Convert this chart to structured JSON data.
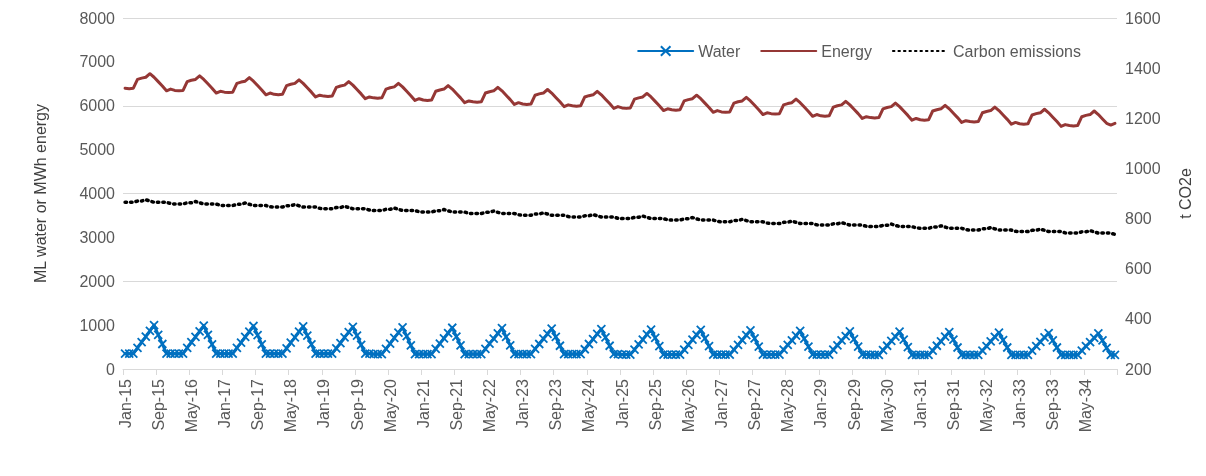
{
  "chart_data": {
    "type": "line",
    "ylabel": "ML water or MWh energy",
    "y2label": "t CO2e",
    "categories": [
      "Jan-15",
      null,
      null,
      null,
      null,
      null,
      null,
      null,
      "Sep-15",
      null,
      null,
      null,
      null,
      null,
      null,
      null,
      "May-16",
      null,
      null,
      null,
      null,
      null,
      null,
      null,
      "Jan-17",
      null,
      null,
      null,
      null,
      null,
      null,
      null,
      "Sep-17",
      null,
      null,
      null,
      null,
      null,
      null,
      null,
      "May-18",
      null,
      null,
      null,
      null,
      null,
      null,
      null,
      "Jan-19",
      null,
      null,
      null,
      null,
      null,
      null,
      null,
      "Sep-19",
      null,
      null,
      null,
      null,
      null,
      null,
      null,
      "May-20",
      null,
      null,
      null,
      null,
      null,
      null,
      null,
      "Jan-21",
      null,
      null,
      null,
      null,
      null,
      null,
      null,
      "Sep-21",
      null,
      null,
      null,
      null,
      null,
      null,
      null,
      "May-22",
      null,
      null,
      null,
      null,
      null,
      null,
      null,
      "Jan-23",
      null,
      null,
      null,
      null,
      null,
      null,
      null,
      "Sep-23",
      null,
      null,
      null,
      null,
      null,
      null,
      null,
      "May-24",
      null,
      null,
      null,
      null,
      null,
      null,
      null,
      "Jan-25",
      null,
      null,
      null,
      null,
      null,
      null,
      null,
      "Sep-25",
      null,
      null,
      null,
      null,
      null,
      null,
      null,
      "May-26",
      null,
      null,
      null,
      null,
      null,
      null,
      null,
      "Jan-27",
      null,
      null,
      null,
      null,
      null,
      null,
      null,
      "Sep-27",
      null,
      null,
      null,
      null,
      null,
      null,
      null,
      "May-28",
      null,
      null,
      null,
      null,
      null,
      null,
      null,
      "Jan-29",
      null,
      null,
      null,
      null,
      null,
      null,
      null,
      "Sep-29",
      null,
      null,
      null,
      null,
      null,
      null,
      null,
      "May-30",
      null,
      null,
      null,
      null,
      null,
      null,
      null,
      "Jan-31",
      null,
      null,
      null,
      null,
      null,
      null,
      null,
      "Sep-31",
      null,
      null,
      null,
      null,
      null,
      null,
      null,
      "May-32",
      null,
      null,
      null,
      null,
      null,
      null,
      null,
      "Jan-33",
      null,
      null,
      null,
      null,
      null,
      null,
      null,
      "Sep-33",
      null,
      null,
      null,
      null,
      null,
      null,
      null,
      "May-34",
      null,
      null,
      null,
      null,
      null,
      null,
      null
    ],
    "series": [
      {
        "name": "Water",
        "color": "#0070c0",
        "marker": "cross",
        "values": [
          350,
          350,
          350,
          480,
          610,
          740,
          870,
          1000,
          780,
          570,
          350,
          350,
          350,
          350,
          350,
          480,
          610,
          730,
          860,
          990,
          780,
          560,
          350,
          350,
          350,
          350,
          350,
          480,
          600,
          730,
          850,
          980,
          770,
          560,
          350,
          350,
          350,
          350,
          350,
          470,
          600,
          720,
          850,
          970,
          760,
          560,
          350,
          350,
          350,
          350,
          350,
          470,
          590,
          720,
          840,
          960,
          760,
          550,
          350,
          350,
          340,
          340,
          340,
          460,
          580,
          710,
          830,
          950,
          750,
          540,
          340,
          340,
          340,
          340,
          340,
          460,
          580,
          700,
          820,
          940,
          740,
          540,
          340,
          340,
          340,
          340,
          340,
          460,
          580,
          690,
          810,
          930,
          730,
          540,
          340,
          340,
          340,
          340,
          340,
          460,
          570,
          690,
          800,
          920,
          730,
          530,
          340,
          340,
          340,
          340,
          340,
          450,
          570,
          680,
          800,
          910,
          720,
          530,
          340,
          340,
          330,
          330,
          330,
          440,
          560,
          670,
          790,
          900,
          710,
          520,
          330,
          330,
          330,
          330,
          330,
          440,
          550,
          670,
          780,
          890,
          700,
          520,
          330,
          330,
          330,
          330,
          330,
          440,
          550,
          660,
          770,
          880,
          700,
          510,
          330,
          330,
          330,
          330,
          330,
          440,
          550,
          650,
          760,
          870,
          690,
          510,
          330,
          330,
          330,
          330,
          330,
          440,
          540,
          650,
          750,
          860,
          680,
          510,
          330,
          330,
          320,
          320,
          320,
          430,
          530,
          640,
          740,
          850,
          670,
          500,
          320,
          320,
          320,
          320,
          320,
          420,
          530,
          630,
          740,
          840,
          670,
          490,
          320,
          320,
          320,
          320,
          320,
          420,
          520,
          630,
          730,
          830,
          660,
          490,
          320,
          320,
          320,
          320,
          320,
          420,
          520,
          620,
          720,
          820,
          650,
          490,
          320,
          320,
          320,
          320,
          320,
          420,
          520,
          610,
          710,
          810,
          650,
          480,
          320,
          320
        ]
      },
      {
        "name": "Energy",
        "color": "#953735",
        "marker": "none",
        "values": [
          6400,
          6390,
          6400,
          6600,
          6630,
          6650,
          6730,
          6650,
          6550,
          6450,
          6340,
          6380,
          6350,
          6340,
          6350,
          6550,
          6580,
          6600,
          6680,
          6600,
          6500,
          6400,
          6290,
          6330,
          6310,
          6300,
          6310,
          6510,
          6540,
          6560,
          6640,
          6560,
          6460,
          6360,
          6250,
          6290,
          6260,
          6250,
          6260,
          6460,
          6490,
          6510,
          6590,
          6510,
          6410,
          6310,
          6200,
          6240,
          6220,
          6210,
          6220,
          6420,
          6450,
          6470,
          6550,
          6470,
          6370,
          6270,
          6160,
          6200,
          6180,
          6170,
          6180,
          6380,
          6410,
          6430,
          6510,
          6430,
          6330,
          6230,
          6120,
          6160,
          6130,
          6120,
          6130,
          6330,
          6360,
          6380,
          6460,
          6380,
          6280,
          6180,
          6070,
          6110,
          6090,
          6080,
          6090,
          6290,
          6320,
          6340,
          6420,
          6340,
          6240,
          6140,
          6030,
          6070,
          6040,
          6030,
          6040,
          6240,
          6270,
          6290,
          6370,
          6290,
          6190,
          6090,
          5980,
          6020,
          6000,
          5990,
          6000,
          6200,
          6230,
          6250,
          6330,
          6250,
          6150,
          6050,
          5940,
          5980,
          5950,
          5940,
          5950,
          6150,
          6180,
          6200,
          6280,
          6200,
          6100,
          6000,
          5890,
          5930,
          5910,
          5900,
          5910,
          6110,
          6140,
          6160,
          6240,
          6160,
          6060,
          5960,
          5850,
          5890,
          5860,
          5850,
          5860,
          6060,
          6090,
          6110,
          6190,
          6110,
          6010,
          5910,
          5800,
          5840,
          5820,
          5810,
          5820,
          6020,
          6050,
          6070,
          6150,
          6070,
          5970,
          5870,
          5760,
          5800,
          5770,
          5760,
          5770,
          5970,
          6000,
          6020,
          6100,
          6020,
          5920,
          5820,
          5710,
          5750,
          5730,
          5720,
          5730,
          5930,
          5960,
          5980,
          6060,
          5980,
          5880,
          5780,
          5670,
          5710,
          5680,
          5670,
          5680,
          5880,
          5910,
          5930,
          6010,
          5930,
          5830,
          5730,
          5620,
          5660,
          5640,
          5630,
          5640,
          5840,
          5870,
          5890,
          5970,
          5890,
          5790,
          5690,
          5580,
          5620,
          5590,
          5580,
          5590,
          5790,
          5820,
          5840,
          5920,
          5840,
          5740,
          5640,
          5530,
          5570,
          5550,
          5540,
          5550,
          5750,
          5780,
          5800,
          5880,
          5800,
          5700,
          5600,
          5560,
          5600
        ]
      },
      {
        "name": "Carbon emissions",
        "color": "#000000",
        "marker": "none",
        "line_style": "dotted",
        "axis": "y2",
        "values": [
          865,
          865,
          865,
          870,
          870,
          875,
          870,
          865,
          865,
          865,
          865,
          860,
          858,
          858,
          858,
          863,
          863,
          868,
          863,
          858,
          858,
          858,
          858,
          853,
          852,
          852,
          852,
          857,
          857,
          862,
          857,
          852,
          852,
          852,
          852,
          847,
          846,
          846,
          846,
          851,
          851,
          856,
          851,
          846,
          846,
          846,
          846,
          841,
          839,
          839,
          839,
          844,
          844,
          849,
          844,
          839,
          839,
          839,
          839,
          834,
          832,
          832,
          832,
          837,
          837,
          842,
          837,
          832,
          832,
          832,
          832,
          827,
          826,
          826,
          826,
          831,
          831,
          836,
          831,
          826,
          826,
          826,
          826,
          821,
          820,
          820,
          820,
          825,
          825,
          830,
          825,
          820,
          820,
          820,
          820,
          815,
          813,
          813,
          813,
          818,
          818,
          823,
          818,
          813,
          813,
          813,
          813,
          808,
          806,
          806,
          806,
          811,
          811,
          816,
          811,
          806,
          806,
          806,
          806,
          801,
          800,
          800,
          800,
          805,
          805,
          810,
          805,
          800,
          800,
          800,
          800,
          795,
          794,
          794,
          794,
          799,
          799,
          804,
          799,
          794,
          794,
          794,
          794,
          789,
          787,
          787,
          787,
          792,
          792,
          797,
          792,
          787,
          787,
          787,
          787,
          782,
          780,
          780,
          780,
          785,
          785,
          790,
          785,
          780,
          780,
          780,
          780,
          775,
          774,
          774,
          774,
          779,
          779,
          784,
          779,
          774,
          774,
          774,
          774,
          769,
          768,
          768,
          768,
          773,
          773,
          778,
          773,
          768,
          768,
          768,
          768,
          763,
          761,
          761,
          761,
          766,
          766,
          771,
          766,
          761,
          761,
          761,
          761,
          756,
          754,
          754,
          754,
          759,
          759,
          764,
          759,
          754,
          754,
          754,
          754,
          749,
          748,
          748,
          748,
          753,
          753,
          758,
          753,
          748,
          748,
          748,
          748,
          743,
          742,
          742,
          742,
          747,
          747,
          752,
          747,
          742,
          742,
          742,
          742,
          737
        ]
      }
    ],
    "ylim": [
      0,
      8000
    ],
    "yticks": [
      0,
      1000,
      2000,
      3000,
      4000,
      5000,
      6000,
      7000,
      8000
    ],
    "y2lim": [
      200,
      1600
    ],
    "y2ticks": [
      200,
      400,
      600,
      800,
      1000,
      1200,
      1400,
      1600
    ],
    "grid": "y",
    "legend": "top right"
  }
}
